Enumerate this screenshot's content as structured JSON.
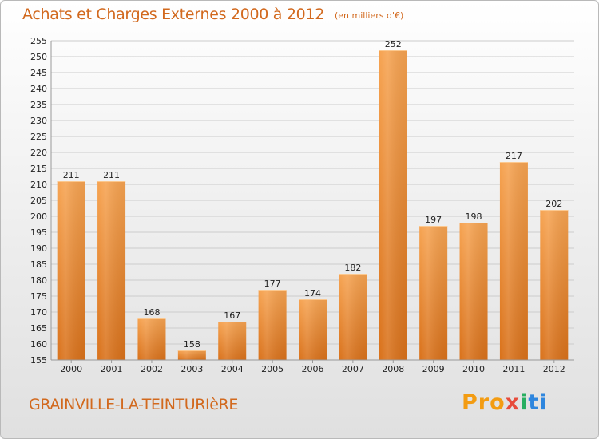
{
  "header": {
    "title": "Achats et Charges Externes 2000 à 2012",
    "subtitle": "(en milliers d'€)"
  },
  "footer": {
    "commune": "GRAINVILLE-LA-TEINTURIèRE",
    "logo_parts": [
      "Pro",
      "x",
      "i",
      "ti"
    ]
  },
  "colors": {
    "bar_top": "#f6a351",
    "bar_bottom": "#d9711a",
    "accent": "#d2691e",
    "grid": "#cccccc"
  },
  "chart_data": {
    "type": "bar",
    "categories": [
      "2000",
      "2001",
      "2002",
      "2003",
      "2004",
      "2005",
      "2006",
      "2007",
      "2008",
      "2009",
      "2010",
      "2011",
      "2012"
    ],
    "values": [
      211,
      211,
      168,
      158,
      167,
      177,
      174,
      182,
      252,
      197,
      198,
      217,
      202
    ],
    "title": "Achats et Charges Externes 2000 à 2012",
    "subtitle": "(en milliers d'€)",
    "xlabel": "",
    "ylabel": "",
    "ylim": [
      155,
      255
    ],
    "ytick_step": 5,
    "grid": true,
    "legend": "none",
    "data_labels": true
  }
}
